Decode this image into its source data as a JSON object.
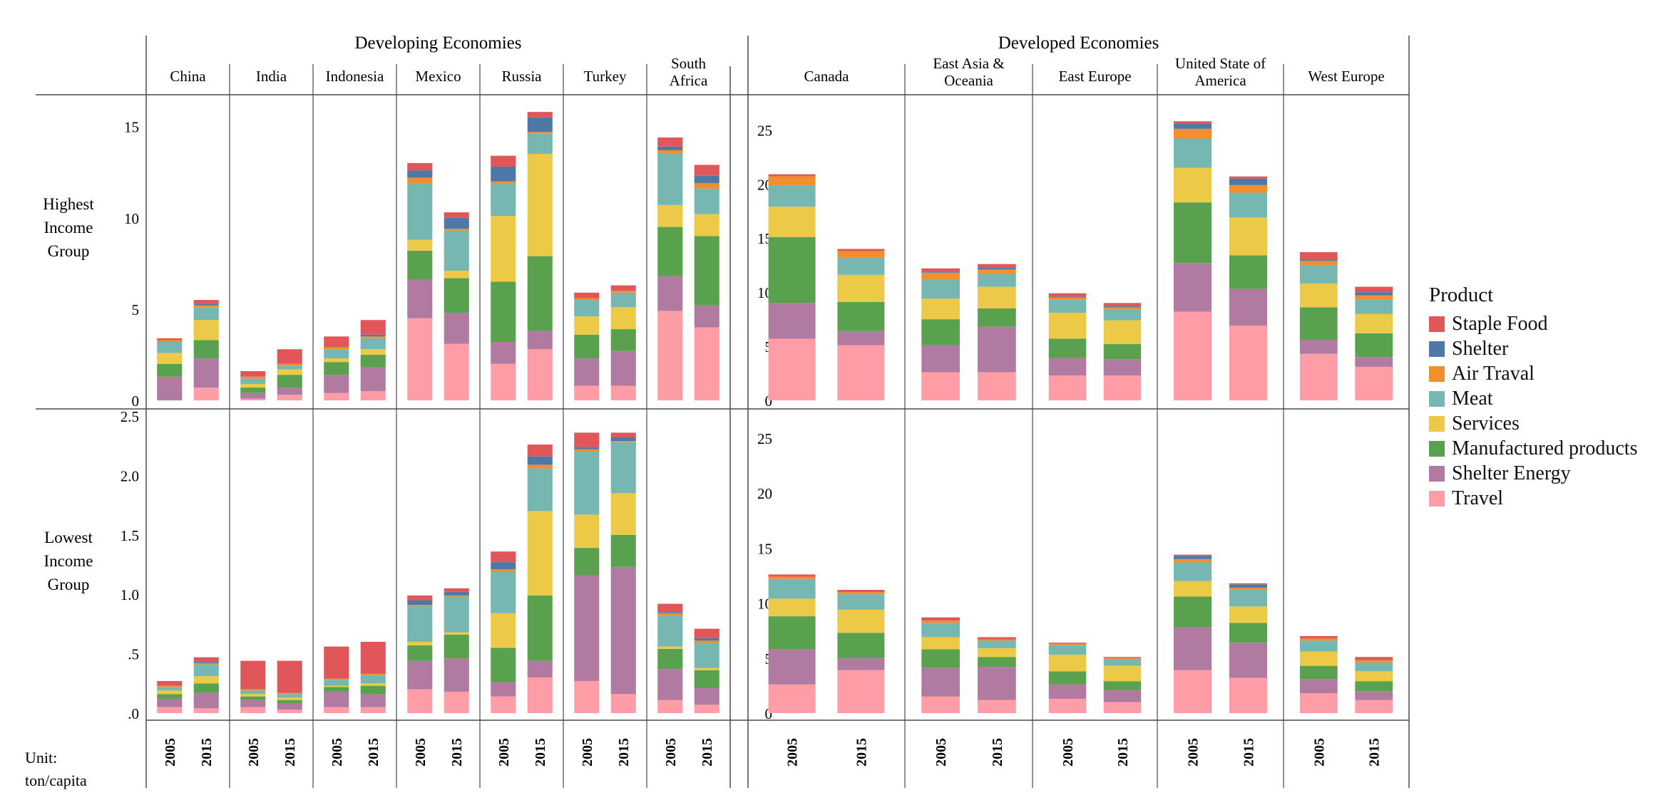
{
  "chart_data": {
    "type": "bar",
    "stacked": true,
    "unit": "Unit:",
    "unit_value": "ton/capita",
    "groups": [
      {
        "name": "Developing Economies",
        "regions": [
          "China",
          "India",
          "Indonesia",
          "Mexico",
          "Russia",
          "Turkey",
          "South Africa"
        ]
      },
      {
        "name": "Developed Economies",
        "regions": [
          "Canada",
          "East Asia & Oceania",
          "East Europe",
          "United State of America",
          "West Europe"
        ]
      }
    ],
    "years": [
      "2005",
      "2015"
    ],
    "rows": [
      "Highest Income Group",
      "Lowest Income Group"
    ],
    "series_order": [
      "Travel",
      "Shelter Energy",
      "Manufactured products",
      "Services",
      "Meat",
      "Air Traval",
      "Shelter",
      "Staple Food"
    ],
    "legend": {
      "title": "Product",
      "items": [
        "Staple Food",
        "Shelter",
        "Air Traval",
        "Meat",
        "Services",
        "Manufactured products",
        "Shelter Energy",
        "Travel"
      ]
    },
    "colors": {
      "Staple Food": "#e15759",
      "Shelter": "#4e79a7",
      "Air Traval": "#f28e2b",
      "Meat": "#76b7b2",
      "Services": "#edc948",
      "Manufactured products": "#59a14f",
      "Shelter Energy": "#b07aa1",
      "Travel": "#ff9da7"
    },
    "axes": {
      "dev_high": {
        "ylim": [
          0,
          16
        ],
        "ticks": [
          0,
          5,
          10,
          15
        ],
        "tick_labels": [
          "0",
          "5",
          "10",
          "15"
        ]
      },
      "dev_low": {
        "ylim": [
          0,
          2.5
        ],
        "ticks": [
          0,
          0.5,
          1.0,
          1.5,
          2.0,
          2.5
        ],
        "tick_labels": [
          ".0",
          ".5",
          "1.0",
          "1.5",
          "2.0",
          "2.5"
        ]
      },
      "ded_high": {
        "ylim": [
          0,
          27
        ],
        "ticks": [
          0,
          5,
          10,
          15,
          20,
          25
        ],
        "tick_labels": [
          "0",
          "5",
          "10",
          "15",
          "20",
          "25"
        ]
      },
      "ded_low": {
        "ylim": [
          0,
          27
        ],
        "ticks": [
          0,
          5,
          10,
          15,
          20,
          25
        ],
        "tick_labels": [
          "0",
          "5",
          "10",
          "15",
          "20",
          "25"
        ]
      }
    },
    "data": {
      "high": {
        "China": [
          [
            0,
            1.3,
            0.7,
            0.6,
            0.6,
            0.1,
            0,
            0.1
          ],
          [
            0.7,
            1.6,
            1.0,
            1.1,
            0.7,
            0.1,
            0.1,
            0.2
          ]
        ],
        "India": [
          [
            0.1,
            0.3,
            0.3,
            0.2,
            0.3,
            0.1,
            0,
            0.3
          ],
          [
            0.3,
            0.4,
            0.7,
            0.3,
            0.2,
            0.1,
            0,
            0.8
          ]
        ],
        "Indonesia": [
          [
            0.4,
            1.0,
            0.7,
            0.2,
            0.5,
            0.1,
            0,
            0.6
          ],
          [
            0.5,
            1.3,
            0.7,
            0.3,
            0.6,
            0.1,
            0.1,
            0.8
          ]
        ],
        "Mexico": [
          [
            4.5,
            2.1,
            1.6,
            0.6,
            3.1,
            0.3,
            0.4,
            0.4
          ],
          [
            3.1,
            1.7,
            1.9,
            0.4,
            2.2,
            0.1,
            0.6,
            0.3
          ]
        ],
        "Russia": [
          [
            2.0,
            1.2,
            3.3,
            3.6,
            1.8,
            0.1,
            0.8,
            0.6
          ],
          [
            2.8,
            1.0,
            4.1,
            5.6,
            1.1,
            0.1,
            0.8,
            0.3
          ]
        ],
        "Turkey": [
          [
            0.8,
            1.5,
            1.3,
            1.0,
            0.9,
            0.1,
            0,
            0.3
          ],
          [
            0.8,
            1.9,
            1.2,
            1.2,
            0.8,
            0.1,
            0,
            0.3
          ]
        ],
        "South Africa": [
          [
            4.9,
            1.9,
            2.7,
            1.2,
            2.8,
            0.2,
            0.2,
            0.5
          ],
          [
            4.0,
            1.2,
            3.8,
            1.2,
            1.4,
            0.3,
            0.4,
            0.6
          ]
        ],
        "Canada": [
          [
            5.7,
            3.3,
            6.1,
            2.8,
            2.0,
            0.8,
            0,
            0.2
          ],
          [
            5.1,
            1.3,
            2.7,
            2.5,
            1.6,
            0.6,
            0,
            0.2
          ]
        ],
        "East Asia & Oceania": [
          [
            2.6,
            2.5,
            2.4,
            1.9,
            1.8,
            0.6,
            0.1,
            0.3
          ],
          [
            2.6,
            4.2,
            1.7,
            2.0,
            1.2,
            0.4,
            0.2,
            0.3
          ]
        ],
        "East Europe": [
          [
            2.3,
            1.6,
            1.8,
            2.4,
            1.2,
            0.2,
            0.1,
            0.3
          ],
          [
            2.3,
            1.5,
            1.4,
            2.2,
            1.0,
            0.2,
            0.1,
            0.3
          ]
        ],
        "United State of America": [
          [
            8.2,
            4.5,
            5.6,
            3.2,
            2.7,
            0.9,
            0.5,
            0.2
          ],
          [
            6.9,
            3.4,
            3.1,
            3.5,
            2.3,
            0.7,
            0.6,
            0.2
          ]
        ],
        "West Europe": [
          [
            4.3,
            1.3,
            3.0,
            2.2,
            1.7,
            0.4,
            0.1,
            0.7
          ],
          [
            3.1,
            0.9,
            2.2,
            1.8,
            1.3,
            0.4,
            0.3,
            0.5
          ]
        ]
      },
      "low": {
        "China": [
          [
            0.05,
            0.07,
            0.04,
            0.03,
            0.03,
            0.01,
            0,
            0.04
          ],
          [
            0.04,
            0.13,
            0.08,
            0.06,
            0.1,
            0.01,
            0.01,
            0.04
          ]
        ],
        "India": [
          [
            0.05,
            0.06,
            0.03,
            0.02,
            0.03,
            0.01,
            0,
            0.24
          ],
          [
            0.03,
            0.05,
            0.03,
            0.02,
            0.03,
            0.01,
            0,
            0.27
          ]
        ],
        "Indonesia": [
          [
            0.05,
            0.13,
            0.04,
            0.01,
            0.05,
            0.01,
            0,
            0.27
          ],
          [
            0.05,
            0.11,
            0.07,
            0.02,
            0.07,
            0.01,
            0,
            0.27
          ]
        ],
        "Mexico": [
          [
            0.2,
            0.24,
            0.13,
            0.03,
            0.3,
            0.01,
            0.04,
            0.04
          ],
          [
            0.18,
            0.28,
            0.2,
            0.02,
            0.3,
            0.01,
            0.03,
            0.03
          ]
        ],
        "Russia": [
          [
            0.14,
            0.12,
            0.29,
            0.29,
            0.35,
            0.02,
            0.06,
            0.09
          ],
          [
            0.3,
            0.14,
            0.55,
            0.71,
            0.36,
            0.03,
            0.07,
            0.1
          ]
        ],
        "Turkey": [
          [
            0.27,
            0.89,
            0.23,
            0.28,
            0.53,
            0.02,
            0.02,
            0.12
          ],
          [
            0.16,
            1.07,
            0.27,
            0.35,
            0.43,
            0.01,
            0.03,
            0.04
          ]
        ],
        "South Africa": [
          [
            0.11,
            0.26,
            0.17,
            0.02,
            0.26,
            0.02,
            0.01,
            0.07
          ],
          [
            0.07,
            0.14,
            0.15,
            0.02,
            0.21,
            0.02,
            0.02,
            0.08
          ]
        ],
        "Canada": [
          [
            2.6,
            3.2,
            3.0,
            1.6,
            1.8,
            0.2,
            0,
            0.2
          ],
          [
            3.9,
            1.1,
            2.3,
            2.1,
            1.4,
            0.2,
            0,
            0.2
          ]
        ],
        "East Asia & Oceania": [
          [
            1.5,
            2.6,
            1.7,
            1.1,
            1.3,
            0.2,
            0,
            0.3
          ],
          [
            1.2,
            3.0,
            0.9,
            0.8,
            0.7,
            0.1,
            0,
            0.2
          ]
        ],
        "East Europe": [
          [
            1.3,
            1.3,
            1.2,
            1.5,
            0.9,
            0.1,
            0,
            0.1
          ],
          [
            1.0,
            1.1,
            0.8,
            1.4,
            0.6,
            0.1,
            0,
            0.1
          ]
        ],
        "United State of America": [
          [
            3.9,
            3.9,
            2.8,
            1.4,
            1.7,
            0.3,
            0.3,
            0.1
          ],
          [
            3.2,
            3.2,
            1.8,
            1.5,
            1.5,
            0.2,
            0.3,
            0.1
          ]
        ],
        "West Europe": [
          [
            1.8,
            1.3,
            1.2,
            1.3,
            1.0,
            0.2,
            0,
            0.2
          ],
          [
            1.2,
            0.8,
            0.9,
            0.9,
            0.8,
            0.2,
            0,
            0.3
          ]
        ]
      }
    }
  }
}
